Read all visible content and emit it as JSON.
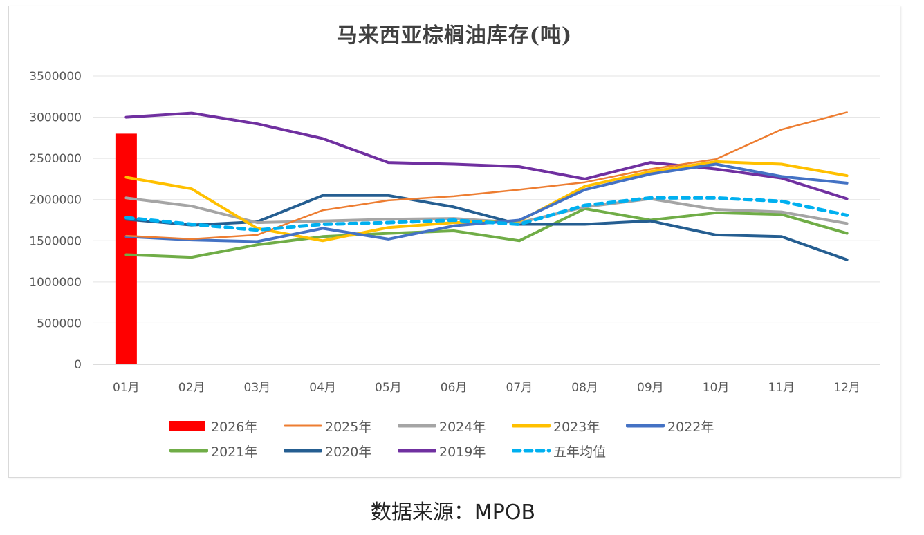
{
  "source_text": "数据来源：MPOB",
  "chart_data": {
    "type": "line",
    "title": "马来西亚棕榈油库存(吨)",
    "xlabel": "",
    "ylabel": "",
    "categories": [
      "01月",
      "02月",
      "03月",
      "04月",
      "05月",
      "06月",
      "07月",
      "08月",
      "09月",
      "10月",
      "11月",
      "12月"
    ],
    "ylim": [
      0,
      3500000
    ],
    "yticks": [
      0,
      500000,
      1000000,
      1500000,
      2000000,
      2500000,
      3000000,
      3500000
    ],
    "ytick_labels": [
      "0",
      "500000",
      "1000000",
      "1500000",
      "2000000",
      "2500000",
      "3000000",
      "3500000"
    ],
    "grid": true,
    "legend_position": "bottom",
    "series": [
      {
        "name": "2026年",
        "kind": "bar",
        "color": "#ff0000",
        "values": [
          2800000,
          null,
          null,
          null,
          null,
          null,
          null,
          null,
          null,
          null,
          null,
          null
        ]
      },
      {
        "name": "2025年",
        "kind": "line",
        "color": "#ed7d31",
        "dash": false,
        "values": [
          1560000,
          1520000,
          1570000,
          1870000,
          1990000,
          2040000,
          2120000,
          2210000,
          2370000,
          2490000,
          2850000,
          3060000
        ]
      },
      {
        "name": "2024年",
        "kind": "line",
        "color": "#a5a5a5",
        "dash": false,
        "values": [
          2020000,
          1920000,
          1720000,
          1740000,
          1760000,
          1770000,
          1720000,
          1910000,
          2010000,
          1880000,
          1850000,
          1710000
        ]
      },
      {
        "name": "2023年",
        "kind": "line",
        "color": "#ffc000",
        "dash": false,
        "values": [
          2270000,
          2130000,
          1650000,
          1500000,
          1660000,
          1720000,
          1740000,
          2160000,
          2340000,
          2460000,
          2430000,
          2290000
        ]
      },
      {
        "name": "2022年",
        "kind": "line",
        "color": "#4472c4",
        "dash": false,
        "values": [
          1550000,
          1510000,
          1490000,
          1650000,
          1520000,
          1680000,
          1750000,
          2120000,
          2310000,
          2430000,
          2280000,
          2200000
        ]
      },
      {
        "name": "2021年",
        "kind": "line",
        "color": "#70ad47",
        "dash": false,
        "values": [
          1330000,
          1300000,
          1450000,
          1550000,
          1590000,
          1620000,
          1500000,
          1890000,
          1750000,
          1840000,
          1820000,
          1590000
        ]
      },
      {
        "name": "2020年",
        "kind": "line",
        "color": "#255e91",
        "dash": false,
        "values": [
          1760000,
          1690000,
          1730000,
          2050000,
          2050000,
          1910000,
          1700000,
          1700000,
          1740000,
          1570000,
          1550000,
          1270000
        ]
      },
      {
        "name": "2019年",
        "kind": "line",
        "color": "#7030a0",
        "dash": false,
        "values": [
          3000000,
          3050000,
          2920000,
          2740000,
          2450000,
          2430000,
          2400000,
          2250000,
          2450000,
          2370000,
          2260000,
          2010000
        ]
      },
      {
        "name": "五年均值",
        "kind": "line",
        "color": "#00b0f0",
        "dash": true,
        "values": [
          1780000,
          1700000,
          1630000,
          1700000,
          1720000,
          1750000,
          1700000,
          1930000,
          2020000,
          2020000,
          1980000,
          1810000
        ]
      }
    ]
  }
}
